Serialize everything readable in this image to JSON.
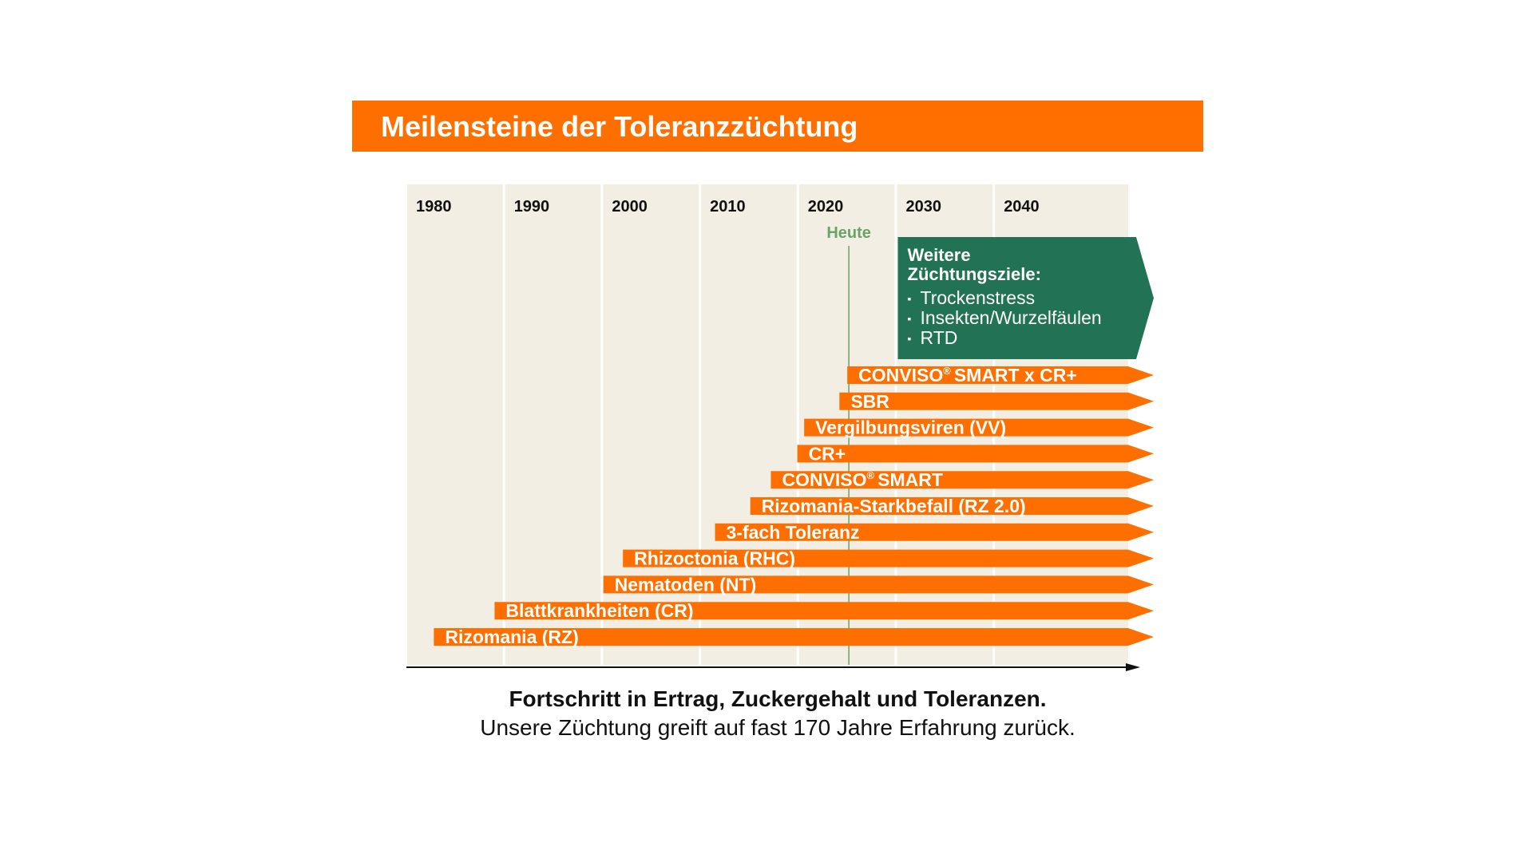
{
  "title": "Meilensteine der Toleranzzüchtung",
  "caption": {
    "bold": "Fortschritt in Ertrag, Zuckergehalt und Toleranzen.",
    "regular": "Unsere Züchtung greift auf fast 170 Jahre Erfahrung zurück."
  },
  "chart_data": {
    "type": "bar",
    "orientation": "horizontal-timeline",
    "x_ticks": [
      "1980",
      "1990",
      "2000",
      "2010",
      "2020",
      "2030",
      "2040"
    ],
    "xlim": [
      1980,
      2054
    ],
    "today": {
      "label": "Heute",
      "year": 2025
    },
    "future_box": {
      "start": 2030,
      "heading": "Weitere Züchtungsziele:",
      "bullet": "▪",
      "items": [
        "Trockenstress",
        "Insekten/Wurzelfäulen",
        "RTD"
      ]
    },
    "milestones": [
      {
        "label": "CONVISO",
        "registered": true,
        "suffix": "SMART x CR+",
        "start": 2025
      },
      {
        "label": "SBR",
        "start": 2024.2
      },
      {
        "label": "Vergilbungsviren (VV)",
        "start": 2020.6
      },
      {
        "label": "CR+",
        "start": 2019.9
      },
      {
        "label": "CONVISO",
        "registered": true,
        "suffix": "SMART",
        "start": 2017.2
      },
      {
        "label": "Rizomania-Starkbefall (RZ 2.0)",
        "start": 2015.1
      },
      {
        "label": "3-fach Toleranz",
        "start": 2011.5
      },
      {
        "label": "Rhizoctonia (RHC)",
        "start": 2002.1
      },
      {
        "label": "Nematoden (NT)",
        "start": 2000.1
      },
      {
        "label": "Blattkrankheiten (CR)",
        "start": 1989
      },
      {
        "label": "Rizomania (RZ)",
        "start": 1982.8
      }
    ],
    "colors": {
      "orange": "#fe6f00",
      "green": "#227255",
      "today_line": "#6aa26a",
      "column": "#f3eee4",
      "axis": "#111111"
    }
  }
}
